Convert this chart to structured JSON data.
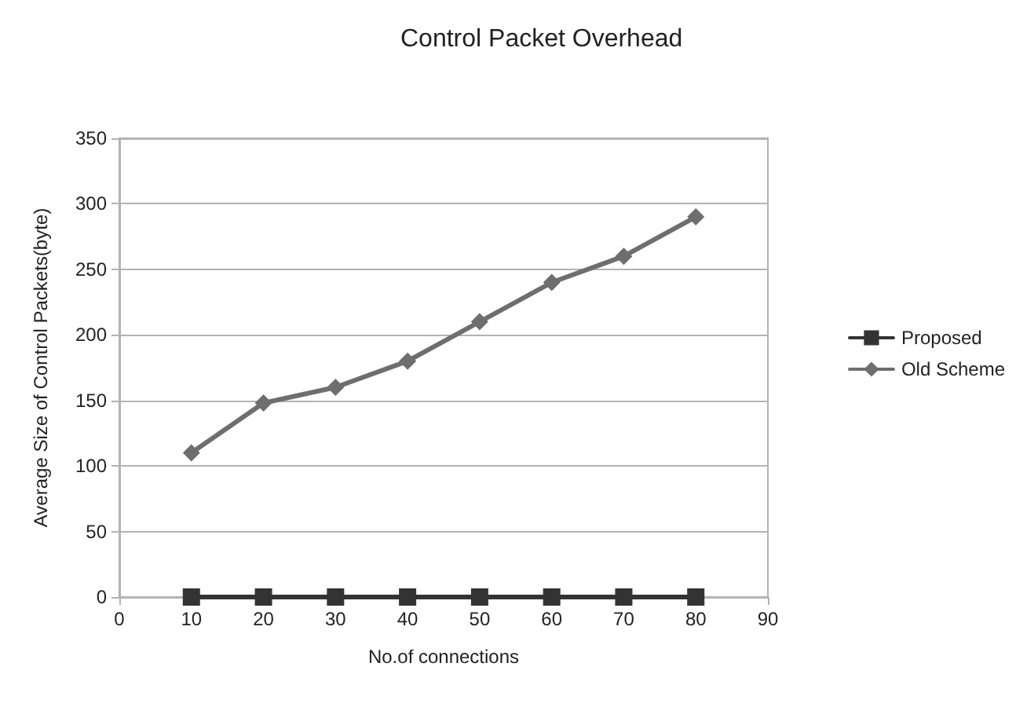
{
  "chart_data": {
    "type": "line",
    "title": "Control Packet Overhead",
    "xlabel": "No.of connections",
    "ylabel": "Average Size of Control Packets(byte)",
    "x": [
      10,
      20,
      30,
      40,
      50,
      60,
      70,
      80
    ],
    "series": [
      {
        "name": "Proposed",
        "color": "#333333",
        "marker": "square",
        "values": [
          0,
          0,
          0,
          0,
          0,
          0,
          0,
          0
        ]
      },
      {
        "name": "Old Scheme",
        "color": "#6e6e6e",
        "marker": "diamond",
        "values": [
          110,
          148,
          160,
          180,
          210,
          240,
          260,
          290
        ]
      }
    ],
    "xlim": [
      0,
      90
    ],
    "xticks": [
      0,
      10,
      20,
      30,
      40,
      50,
      60,
      70,
      80,
      90
    ],
    "ylim": [
      0,
      350
    ],
    "yticks": [
      0,
      50,
      100,
      150,
      200,
      250,
      300,
      350
    ],
    "grid": "y",
    "legend": "right",
    "line_style": "solid"
  }
}
